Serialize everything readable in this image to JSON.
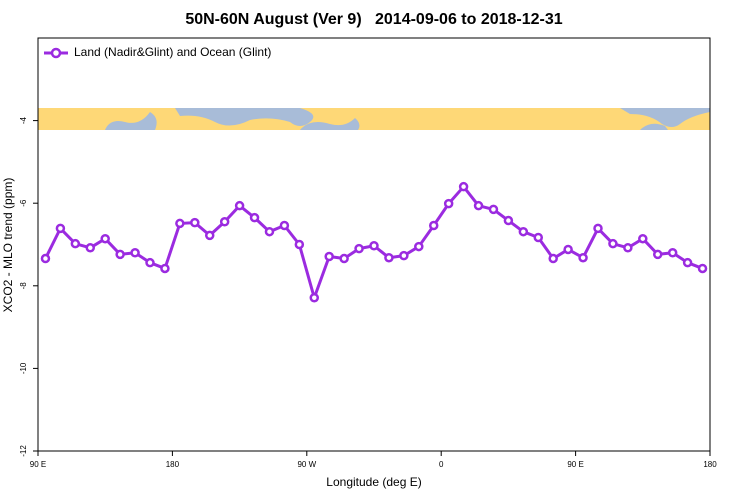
{
  "chart_data": {
    "type": "line",
    "title": "50N-60N August (Ver 9)   2014-09-06 to 2018-12-31",
    "x_label": "Longitude (deg E)",
    "y_label": "XCO2 - MLO trend (ppm)",
    "x": [
      95,
      105,
      115,
      125,
      135,
      145,
      155,
      165,
      175,
      185,
      195,
      205,
      215,
      225,
      235,
      245,
      255,
      265,
      275,
      285,
      295,
      305,
      315,
      325,
      335,
      345,
      355,
      365,
      375,
      385,
      395,
      405,
      415,
      425,
      435,
      445,
      455,
      465,
      475,
      485,
      495,
      505,
      515,
      525,
      535
    ],
    "series": [
      {
        "name": "Land (Nadir&Glint) and Ocean (Glint)",
        "color": "#9b2be0",
        "values": [
          -7.34,
          -6.61,
          -6.98,
          -7.08,
          -6.86,
          -7.24,
          -7.2,
          -7.44,
          -7.58,
          -6.49,
          -6.47,
          -6.78,
          -6.45,
          -6.06,
          -6.35,
          -6.69,
          -6.54,
          -7.0,
          -8.29,
          -7.29,
          -7.34,
          -7.1,
          -7.03,
          -7.32,
          -7.27,
          -7.05,
          -6.54,
          -6.01,
          -5.6,
          -6.06,
          -6.15,
          -6.42,
          -6.69,
          -6.83,
          -7.34,
          -7.12,
          -7.32,
          -6.61,
          -6.98,
          -7.08,
          -6.86,
          -7.24,
          -7.2,
          -7.44,
          -7.58
        ]
      }
    ],
    "xlim": [
      90,
      540
    ],
    "xticks": [
      {
        "value": 90,
        "label": "90 E"
      },
      180,
      {
        "value": 270,
        "label": "90 W"
      },
      {
        "value": 360,
        "label": "0"
      },
      {
        "value": 450,
        "label": "90 E"
      },
      {
        "value": 540,
        "label": "180"
      }
    ],
    "ylim": [
      -12,
      -2
    ],
    "yticks": [
      -12,
      -10,
      -8,
      -6,
      -4
    ],
    "legend": "upper left"
  }
}
